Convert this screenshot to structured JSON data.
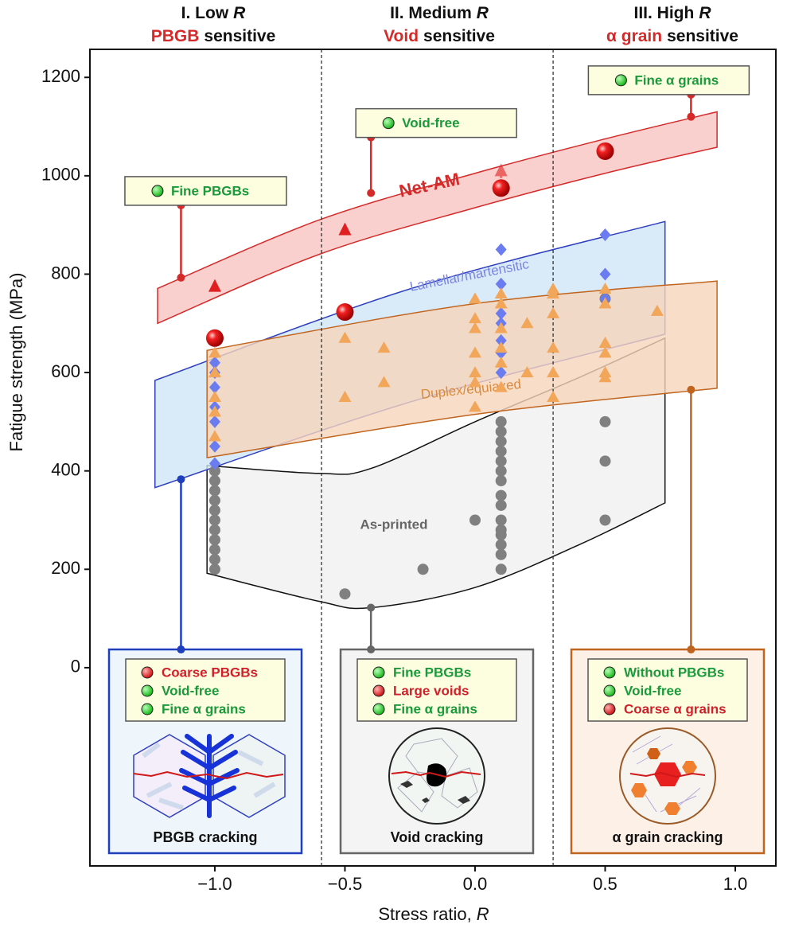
{
  "chart_data": {
    "type": "scatter",
    "y_label": "Fatigue strength (MPa)",
    "x_label": "Stress ratio,",
    "x_label_var": "R",
    "xlim": [
      -1.48,
      1.156
    ],
    "ylim": [
      -403,
      1257
    ],
    "xticks": [
      {
        "value": -1.0,
        "label": "−1.0"
      },
      {
        "value": -0.5,
        "label": "−0.5"
      },
      {
        "value": 0.0,
        "label": "0.0"
      },
      {
        "value": 0.5,
        "label": "0.5"
      },
      {
        "value": 1.0,
        "label": "1.0"
      }
    ],
    "yticks": [
      0,
      200,
      400,
      600,
      800,
      1000,
      1200
    ],
    "dividers": [
      -0.59,
      0.3
    ],
    "regimes": [
      {
        "label": "I. Low",
        "var": "R",
        "key": "PBGB",
        "rest": "sensitive"
      },
      {
        "label": "II. Medium",
        "var": "R",
        "key": "Void",
        "rest": "sensitive"
      },
      {
        "label": "III. High",
        "var": "R",
        "key": "α grain",
        "rest": "sensitive"
      }
    ],
    "bands": [
      {
        "name": "As-printed",
        "color": "#111111",
        "fill": "#f0f0f0",
        "marker": "circle",
        "marker_color": "#808080",
        "x": [
          -1.03,
          -0.6,
          -0.4,
          0,
          0.4,
          0.73
        ],
        "upper": [
          411,
          395,
          405,
          500,
          590,
          670
        ],
        "lower": [
          192,
          135,
          122,
          163,
          250,
          335
        ],
        "points": {
          "x": [
            -1,
            -1,
            -1,
            -1,
            -1,
            -1,
            -1,
            -1,
            -1,
            -1,
            -1,
            -0.5,
            -0.2,
            0,
            0.1,
            0.1,
            0.1,
            0.1,
            0.1,
            0.1,
            0.1,
            0.1,
            0.1,
            0.1,
            0.1,
            0.1,
            0.1,
            0.1,
            0.1,
            0.5,
            0.5,
            0.5,
            0.5
          ],
          "values": [
            200,
            220,
            240,
            260,
            280,
            300,
            320,
            340,
            360,
            380,
            400,
            150,
            200,
            300,
            200,
            230,
            250,
            270,
            280,
            300,
            330,
            350,
            380,
            400,
            420,
            440,
            460,
            480,
            500,
            300,
            420,
            500,
            750
          ]
        }
      },
      {
        "name": "Lamellar/martensitic",
        "color": "#2f3fbf",
        "fill": "#cfe6f7",
        "marker": "diamond",
        "marker_color": "#6b7cf0",
        "x": [
          -1.23,
          -0.25,
          0.73
        ],
        "upper": [
          584,
          770,
          907
        ],
        "lower": [
          366,
          540,
          678
        ],
        "points": {
          "x": [
            -1,
            -1,
            -1,
            -1,
            -1,
            -1,
            -1,
            0.1,
            0.1,
            0.1,
            0.1,
            0.1,
            0.1,
            0.1,
            0.5,
            0.5,
            0.5
          ],
          "values": [
            415,
            450,
            500,
            530,
            570,
            600,
            620,
            600,
            640,
            665,
            700,
            720,
            780,
            850,
            750,
            800,
            880
          ]
        }
      },
      {
        "name": "Duplex/equiaxed",
        "color": "#c0651f",
        "fill": "#f6d5bb",
        "marker": "triangle",
        "marker_color": "#f2a65a",
        "x": [
          -1.03,
          0,
          0.93
        ],
        "upper": [
          645,
          740,
          786
        ],
        "lower": [
          427,
          515,
          568
        ],
        "points": {
          "x": [
            -1,
            -1,
            -1,
            -1,
            -1,
            -0.5,
            -0.5,
            -0.35,
            -0.35,
            0,
            0,
            0,
            0,
            0,
            0,
            0,
            0.1,
            0.1,
            0.1,
            0.1,
            0.1,
            0.1,
            0.2,
            0.2,
            0.3,
            0.3,
            0.3,
            0.3,
            0.3,
            0.3,
            0.5,
            0.5,
            0.5,
            0.5,
            0.5,
            0.5,
            0.7
          ],
          "values": [
            470,
            520,
            550,
            600,
            640,
            550,
            670,
            580,
            650,
            530,
            580,
            600,
            640,
            690,
            710,
            750,
            570,
            620,
            650,
            690,
            740,
            760,
            600,
            700,
            550,
            600,
            650,
            720,
            760,
            770,
            590,
            600,
            640,
            660,
            740,
            770,
            725
          ]
        }
      },
      {
        "name": "Net-AM",
        "color": "#d42a2a",
        "fill": "#f7c4c0",
        "marker": "sphere",
        "marker_color": "#e01515",
        "x": [
          -1.22,
          -0.6,
          0,
          0.5,
          0.93
        ],
        "upper": [
          771,
          910,
          1005,
          1075,
          1130
        ],
        "lower": [
          700,
          840,
          935,
          1005,
          1058
        ],
        "points": {
          "x": [
            -1,
            -0.5,
            0.1,
            0.5
          ],
          "values": [
            670,
            723,
            975,
            1050
          ]
        }
      }
    ],
    "arrows": [
      {
        "x": -1.0,
        "from": 690,
        "to": 790,
        "dashed": false
      },
      {
        "x": -0.5,
        "from": 745,
        "to": 905,
        "dashed": false
      },
      {
        "x": 0.1,
        "from": 995,
        "to": 1025,
        "dashed": true
      }
    ],
    "callouts": [
      {
        "text": "Fine PBGBs",
        "x": -1.13,
        "from": 793,
        "to": 940
      },
      {
        "text": "Void-free",
        "x": -0.4,
        "from": 965,
        "to": 1078
      },
      {
        "text": "Fine α grains",
        "x": 0.83,
        "from": 1120,
        "to": 1165
      }
    ],
    "connectors": [
      {
        "x": -1.13,
        "from": 383,
        "to": 37,
        "color": "#1f3fbf"
      },
      {
        "x": -0.4,
        "from": 122,
        "to": 37,
        "color": "#666666"
      },
      {
        "x": 0.83,
        "from": 565,
        "to": 37,
        "color": "#c0651f"
      }
    ],
    "panels": [
      {
        "items": [
          {
            "text": "Coarse PBGBs",
            "status": "bad"
          },
          {
            "text": "Void-free",
            "status": "good"
          },
          {
            "text": "Fine α grains",
            "status": "good"
          }
        ],
        "caption": "PBGB cracking",
        "border": "#1f3fbf",
        "fill": "#eef6fc"
      },
      {
        "items": [
          {
            "text": "Fine PBGBs",
            "status": "good"
          },
          {
            "text": "Large voids",
            "status": "bad"
          },
          {
            "text": "Fine α grains",
            "status": "good"
          }
        ],
        "caption": "Void cracking",
        "border": "#666666",
        "fill": "#f4f4f4"
      },
      {
        "items": [
          {
            "text": "Without PBGBs",
            "status": "good"
          },
          {
            "text": "Void-free",
            "status": "good"
          },
          {
            "text": "Coarse α grains",
            "status": "bad"
          }
        ],
        "caption": "α grain cracking",
        "border": "#c0651f",
        "fill": "#fdf0e6"
      }
    ]
  }
}
